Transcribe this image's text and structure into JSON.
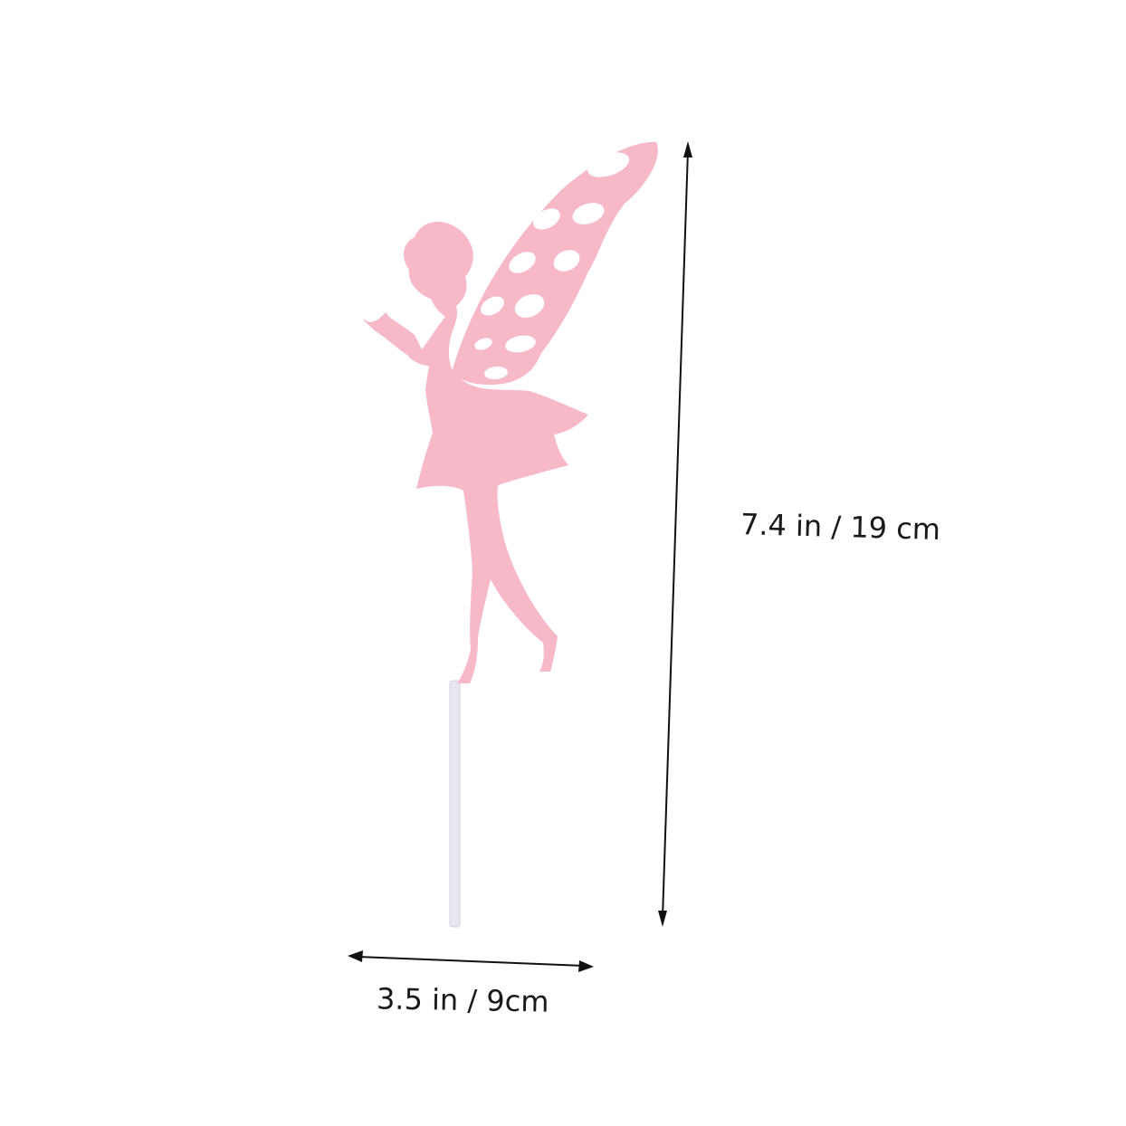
{
  "product": {
    "fairy_color": "#f7b8c8",
    "stick_color": "#e9e6f2"
  },
  "dimensions": {
    "height": "7.4 in / 19 cm",
    "width": "3.5 in / 9cm"
  },
  "colors": {
    "background": "#ffffff",
    "arrow": "#111111"
  }
}
